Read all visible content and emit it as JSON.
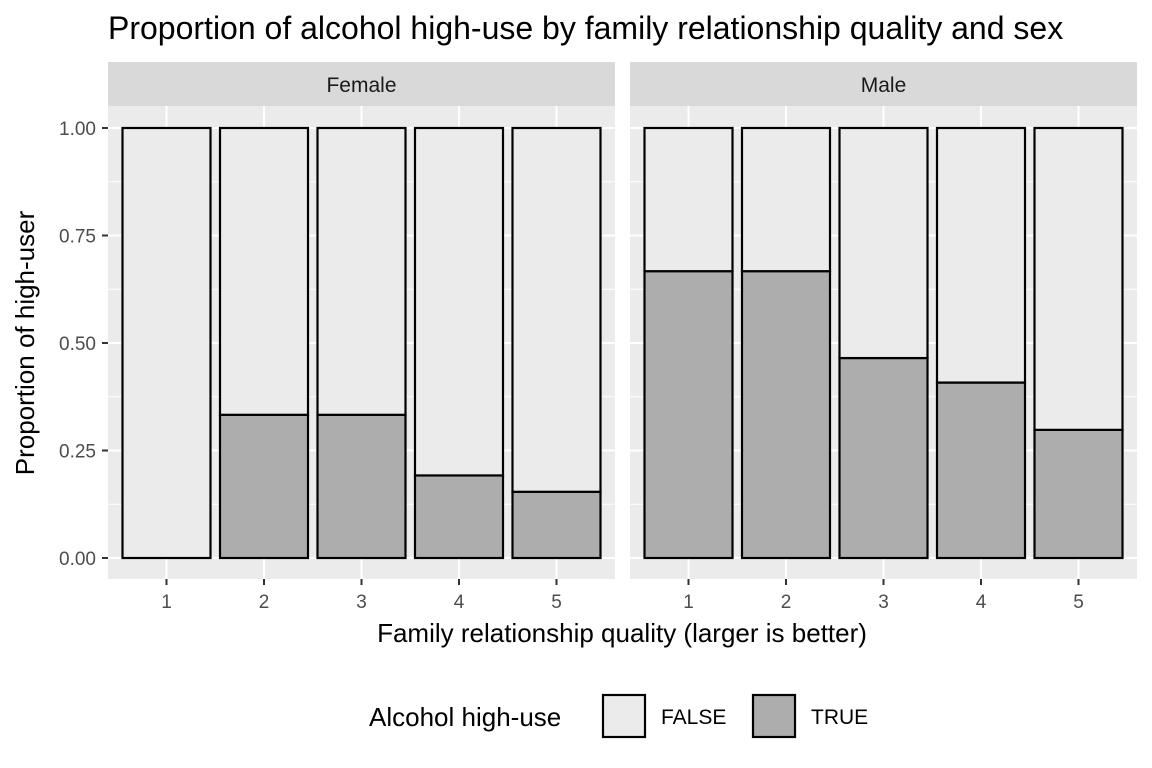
{
  "chart_data": {
    "type": "bar",
    "stacked": true,
    "title": "Proportion of alcohol high-use by family relationship quality and sex",
    "xlabel": "Family relationship quality (larger is better)",
    "ylabel": "Proportion of high-user",
    "ylim": [
      0,
      1
    ],
    "yticks": [
      "0.00",
      "0.25",
      "0.50",
      "0.75",
      "1.00"
    ],
    "ytick_values": [
      0,
      0.25,
      0.5,
      0.75,
      1.0
    ],
    "categories": [
      "1",
      "2",
      "3",
      "4",
      "5"
    ],
    "grid": true,
    "legend": {
      "title": "Alcohol high-use",
      "position": "bottom",
      "entries": [
        {
          "label": "FALSE",
          "color": "#ebebeb"
        },
        {
          "label": "TRUE",
          "color": "#adadad"
        }
      ]
    },
    "panels": [
      {
        "label": "Female",
        "series": [
          {
            "name": "FALSE",
            "values": [
              1.0,
              0.667,
              0.667,
              0.808,
              0.846
            ]
          },
          {
            "name": "TRUE",
            "values": [
              0.0,
              0.333,
              0.333,
              0.192,
              0.154
            ]
          }
        ]
      },
      {
        "label": "Male",
        "series": [
          {
            "name": "FALSE",
            "values": [
              0.333,
              0.333,
              0.535,
              0.592,
              0.702
            ]
          },
          {
            "name": "TRUE",
            "values": [
              0.667,
              0.667,
              0.465,
              0.408,
              0.298
            ]
          }
        ]
      }
    ]
  },
  "colors": {
    "panel_background": "#ebebeb",
    "strip_background": "#d9d9d9",
    "grid": "#ffffff",
    "bar_outline": "#000000",
    "false_fill": "#ebebeb",
    "true_fill": "#adadad"
  }
}
